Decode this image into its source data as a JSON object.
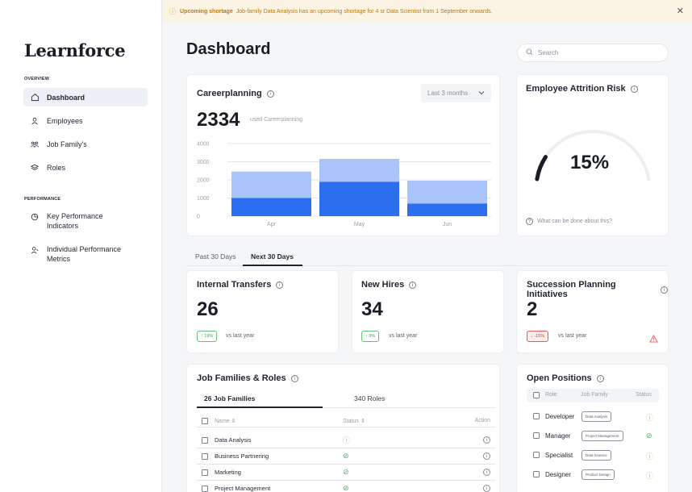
{
  "banner": {
    "title": "Upcoming shortage",
    "message": "Job-family Data Analysis has an upcoming shortage for 4 sr Data Scientist from 1 September onwards.",
    "close": "✕"
  },
  "sidebar": {
    "logo": "Learnforce",
    "overview_label": "OVERVIEW",
    "overview_items": [
      {
        "label": "Dashboard",
        "icon": "home-icon"
      },
      {
        "label": "Employees",
        "icon": "user-icon"
      },
      {
        "label": "Job Family's",
        "icon": "group-icon"
      },
      {
        "label": "Roles",
        "icon": "layers-icon"
      }
    ],
    "performance_label": "PERFORMANCE",
    "performance_items": [
      {
        "label": "Key Performance Indicators",
        "icon": "chart-pie-icon"
      },
      {
        "label": "Individual Performance Metrics",
        "icon": "user-metrics-icon"
      }
    ]
  },
  "header": {
    "title": "Dashboard",
    "search_placeholder": "Search"
  },
  "careerplanning": {
    "title": "Careerplanning",
    "range": "Last 3 months",
    "total": "2334",
    "total_caption": "used Careerplanning"
  },
  "chart_data": {
    "type": "bar",
    "stacked": true,
    "categories": [
      "Apr",
      "May",
      "Jun"
    ],
    "series": [
      {
        "values": [
          1000,
          1900,
          700
        ],
        "color": "#2b6ff0"
      },
      {
        "values": [
          1500,
          1300,
          1300
        ],
        "color": "#a8c4fb"
      }
    ],
    "yticks": [
      0,
      1000,
      2000,
      3000,
      4000
    ],
    "ylim": [
      0,
      4000
    ],
    "grid": true
  },
  "attrition": {
    "title": "Employee Attrition Risk",
    "value": "15%",
    "gauge_fraction": 0.15,
    "help": "What can be done about this?"
  },
  "period_tabs": [
    "Past 30 Days",
    "Next 30 Days"
  ],
  "metrics": [
    {
      "title": "Internal Transfers",
      "value": "26",
      "change": "↑ 19%",
      "direction": "up",
      "caption": "vs last year"
    },
    {
      "title": "New Hires",
      "value": "34",
      "change": "↑ 3%",
      "direction": "up",
      "caption": "vs last year"
    },
    {
      "title": "Succession Planning Initiatives",
      "value": "2",
      "change": "↓ -15%",
      "direction": "down",
      "caption": "vs last year"
    }
  ],
  "job_families": {
    "title": "Job Families & Roles",
    "tabs": [
      "26 Job Families",
      "340 Roles"
    ],
    "columns": [
      "Name",
      "Status",
      "Action"
    ],
    "rows": [
      {
        "name": "Data Analysis",
        "status": "warning"
      },
      {
        "name": "Business Partnering",
        "status": "ok"
      },
      {
        "name": "Marketing",
        "status": "ok"
      },
      {
        "name": "Project Management",
        "status": "ok"
      }
    ]
  },
  "open_positions": {
    "title": "Open Positions",
    "columns": [
      "Role",
      "Job Family",
      "Status"
    ],
    "rows": [
      {
        "role": "Developer",
        "family": "Data Analysis",
        "status": "warning"
      },
      {
        "role": "Manager",
        "family": "Project Management",
        "status": "ok"
      },
      {
        "role": "Specialist",
        "family": "Data Science",
        "status": "warning"
      },
      {
        "role": "Designer",
        "family": "Product Design",
        "status": "warning"
      }
    ]
  }
}
